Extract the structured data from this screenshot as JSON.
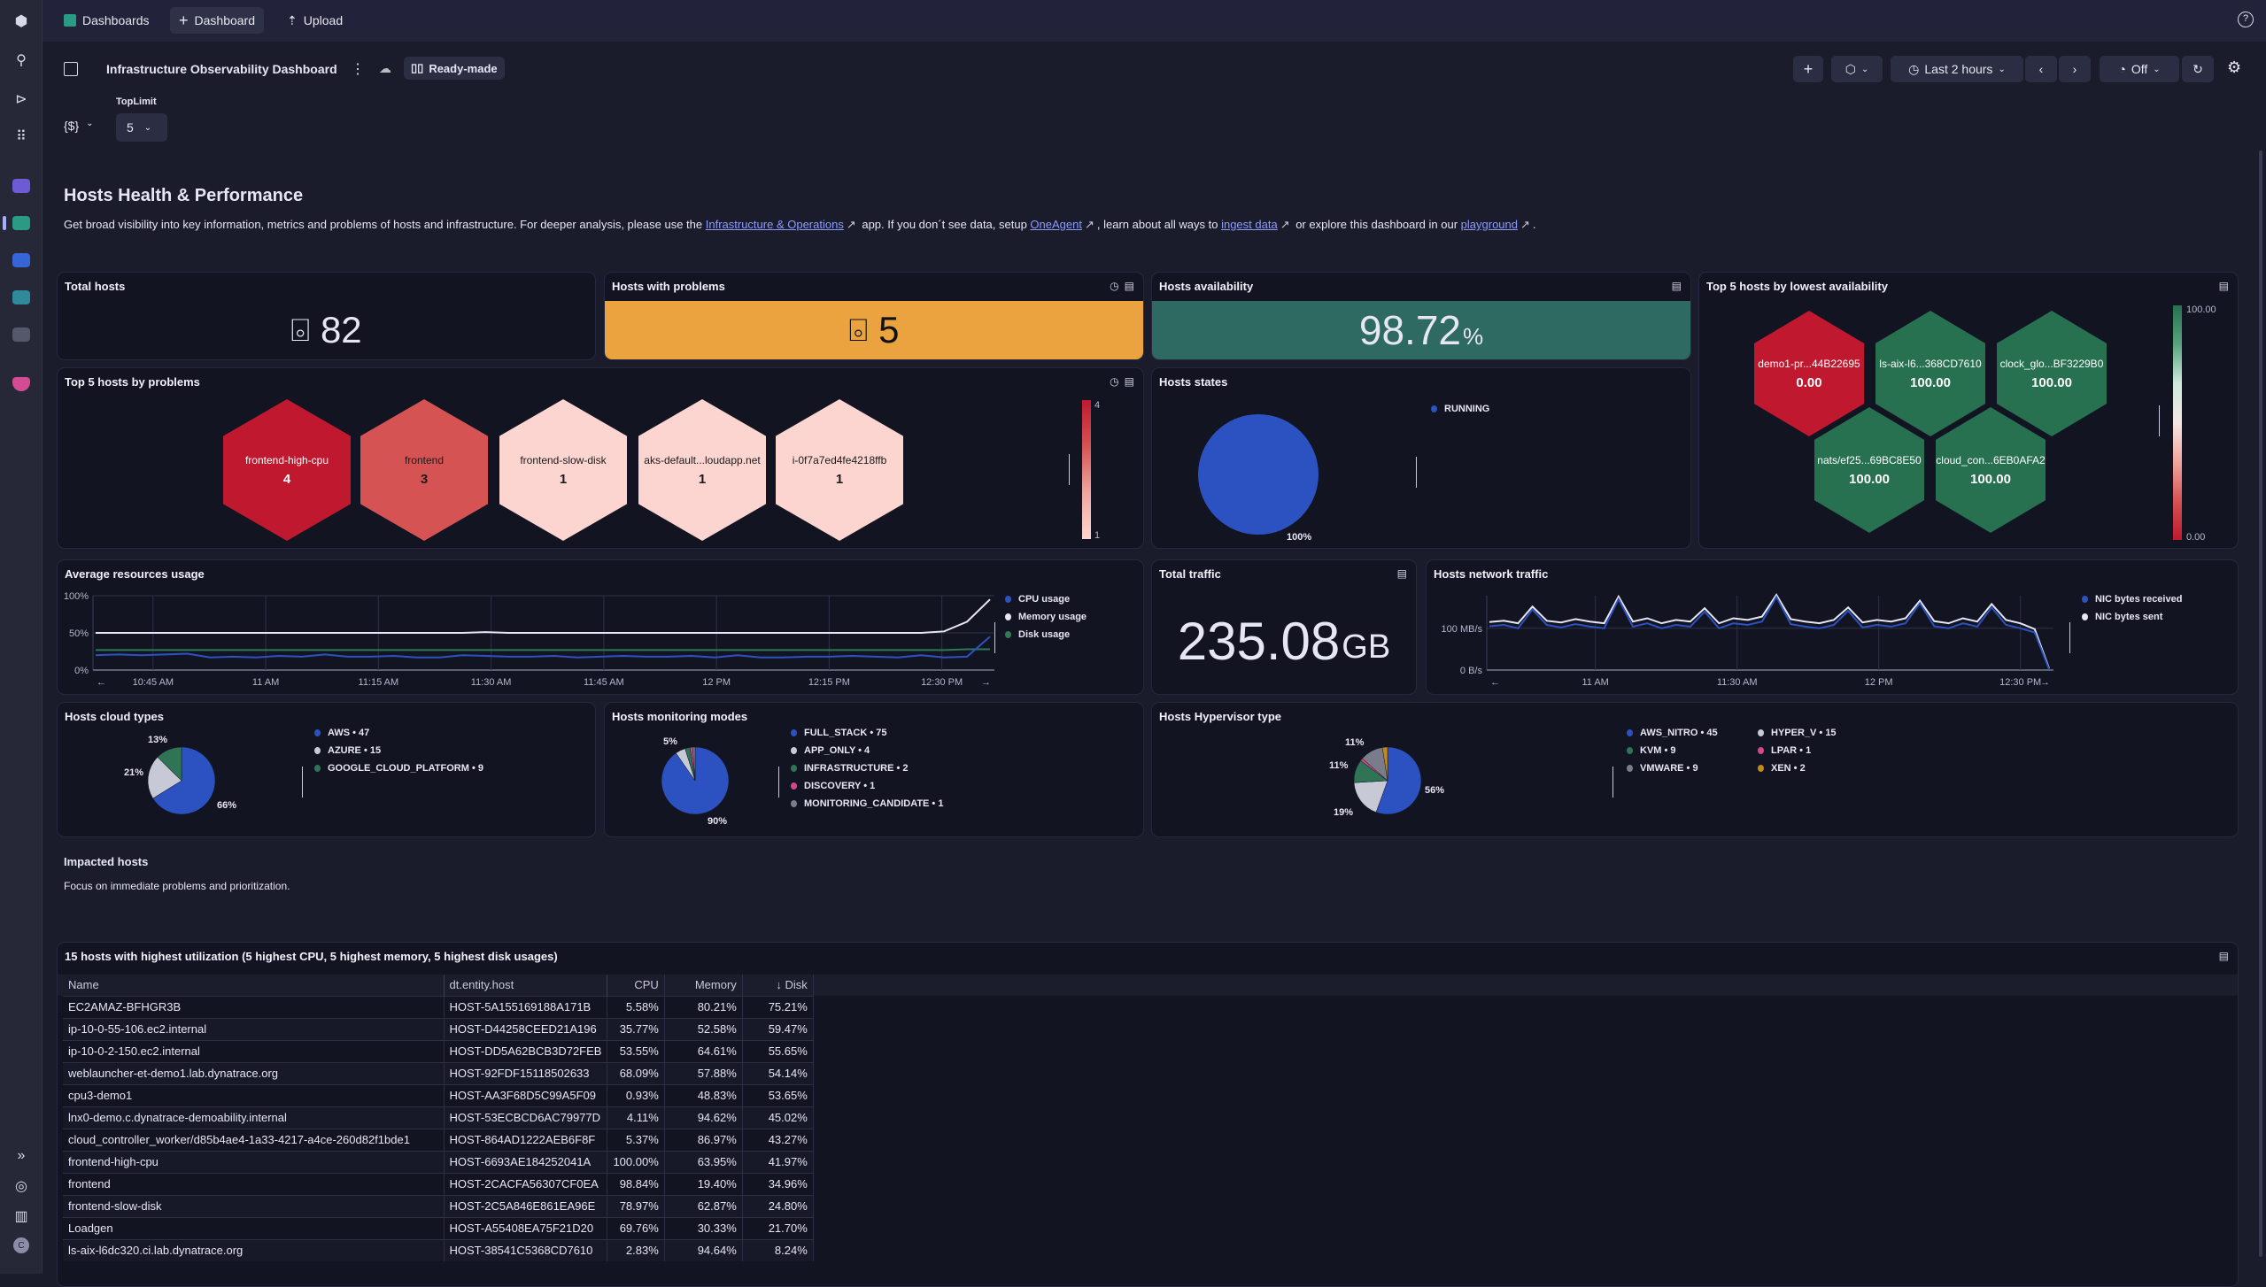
{
  "topbar": {
    "tabs": [
      {
        "label": "Dashboards",
        "icon": "dashboards-app-icon"
      },
      {
        "label": "Dashboard",
        "icon": "plus-icon"
      },
      {
        "label": "Upload",
        "icon": "upload-icon"
      }
    ],
    "help_icon": "help-icon"
  },
  "header": {
    "title": "Infrastructure Observability Dashboard",
    "badge": "Ready-made",
    "timeframe": "Last 2 hours",
    "refresh": "Off"
  },
  "variables": {
    "code_label": "{$}",
    "toplimit_label": "TopLimit",
    "toplimit_value": "5"
  },
  "section": {
    "title": "Hosts Health & Performance",
    "desc": [
      {
        "text": "Get broad visibility into key information, metrics and problems of hosts and infrastructure. For deeper analysis, please use the "
      },
      {
        "link": "Infrastructure & Operations"
      },
      {
        "text": " app. If you don´t see data, setup "
      },
      {
        "link": "OneAgent"
      },
      {
        "text": ", learn about all ways to "
      },
      {
        "link": "ingest data"
      },
      {
        "text": " or explore this dashboard in our "
      },
      {
        "link": "playground"
      },
      {
        "text": "."
      }
    ]
  },
  "tiles": {
    "total_hosts": {
      "title": "Total hosts",
      "value": "82"
    },
    "hosts_problems": {
      "title": "Hosts with problems",
      "value": "5",
      "color": "#eaa33f"
    },
    "availability": {
      "title": "Hosts availability",
      "value": "98.72",
      "unit": "%",
      "color": "#2e6962"
    },
    "lowest_availability": {
      "title": "Top 5 hosts by lowest availability",
      "hosts": [
        {
          "name": "demo1-pr...44B22695",
          "value": "0.00",
          "color": "#c0192f"
        },
        {
          "name": "ls-aix-l6...368CD7610",
          "value": "100.00",
          "color": "#277050"
        },
        {
          "name": "clock_glo...BF3229B0",
          "value": "100.00",
          "color": "#277050"
        },
        {
          "name": "nats/ef25...69BC8E50",
          "value": "100.00",
          "color": "#277050"
        },
        {
          "name": "cloud_con...6EB0AFA2",
          "value": "100.00",
          "color": "#277050"
        }
      ],
      "legend_max": "100.00",
      "legend_min": "0.00"
    },
    "top_problems": {
      "title": "Top 5 hosts by problems",
      "hosts": [
        {
          "name": "frontend-high-cpu",
          "value": "4",
          "color": "#c0192f",
          "text": "#ffffff"
        },
        {
          "name": "frontend",
          "value": "3",
          "color": "#d55353",
          "text": "#1a1a1a"
        },
        {
          "name": "frontend-slow-disk",
          "value": "1",
          "color": "#fcd5d0",
          "text": "#1a1a1a"
        },
        {
          "name": "aks-default...loudapp.net",
          "value": "1",
          "color": "#fcd5d0",
          "text": "#1a1a1a"
        },
        {
          "name": "i-0f7a7ed4fe4218ffb",
          "value": "1",
          "color": "#fcd5d0",
          "text": "#1a1a1a"
        }
      ],
      "legend_max": "4",
      "legend_min": "1"
    },
    "hosts_states": {
      "title": "Hosts states"
    },
    "avg_resources": {
      "title": "Average resources usage"
    },
    "total_traffic": {
      "title": "Total traffic",
      "value": "235.08",
      "unit": "GB"
    },
    "network_traffic": {
      "title": "Hosts network traffic"
    },
    "cloud_types": {
      "title": "Hosts cloud types"
    },
    "monitoring_modes": {
      "title": "Hosts monitoring modes"
    },
    "hypervisor": {
      "title": "Hosts Hypervisor type"
    }
  },
  "impacted": {
    "title": "Impacted hosts",
    "subtitle": "Focus on immediate problems and prioritization."
  },
  "table": {
    "title": "15 hosts with highest utilization (5 highest CPU, 5 highest memory, 5 highest disk usages)",
    "columns": [
      "Name",
      "dt.entity.host",
      "CPU",
      "Memory",
      "↓ Disk"
    ],
    "rows": [
      [
        "EC2AMAZ-BFHGR3B",
        "HOST-5A155169188A171B",
        "5.58%",
        "80.21%",
        "75.21%"
      ],
      [
        "ip-10-0-55-106.ec2.internal",
        "HOST-D44258CEED21A196",
        "35.77%",
        "52.58%",
        "59.47%"
      ],
      [
        "ip-10-0-2-150.ec2.internal",
        "HOST-DD5A62BCB3D72FEB",
        "53.55%",
        "64.61%",
        "55.65%"
      ],
      [
        "weblauncher-et-demo1.lab.dynatrace.org",
        "HOST-92FDF15118502633",
        "68.09%",
        "57.88%",
        "54.14%"
      ],
      [
        "cpu3-demo1",
        "HOST-AA3F68D5C99A5F09",
        "0.93%",
        "48.83%",
        "53.65%"
      ],
      [
        "lnx0-demo.c.dynatrace-demoability.internal",
        "HOST-53ECBCD6AC79977D",
        "4.11%",
        "94.62%",
        "45.02%"
      ],
      [
        "cloud_controller_worker/d85b4ae4-1a33-4217-a4ce-260d82f1bde1",
        "HOST-864AD1222AEB6F8F",
        "5.37%",
        "86.97%",
        "43.27%"
      ],
      [
        "frontend-high-cpu",
        "HOST-6693AE184252041A",
        "100.00%",
        "63.95%",
        "41.97%"
      ],
      [
        "frontend",
        "HOST-2CACFA56307CF0EA",
        "98.84%",
        "19.40%",
        "34.96%"
      ],
      [
        "frontend-slow-disk",
        "HOST-2C5A846E861EA96E",
        "78.97%",
        "62.87%",
        "24.80%"
      ],
      [
        "Loadgen",
        "HOST-A55408EA75F21D20",
        "69.76%",
        "30.33%",
        "21.70%"
      ],
      [
        "ls-aix-l6dc320.ci.lab.dynatrace.org",
        "HOST-38541C5368CD7610",
        "2.83%",
        "94.64%",
        "8.24%"
      ]
    ]
  },
  "chart_data": [
    {
      "id": "hosts_states",
      "type": "pie",
      "series": [
        {
          "name": "RUNNING",
          "value": 82,
          "color": "#2b52c0"
        }
      ],
      "slice_labels": [
        "100%"
      ]
    },
    {
      "id": "avg_resources",
      "type": "line",
      "x_range": [
        "10:37",
        "12:37"
      ],
      "x_ticks": [
        [
          "10:45",
          "10:45 AM"
        ],
        [
          "11:00",
          "11 AM"
        ],
        [
          "11:15",
          "11:15 AM"
        ],
        [
          "11:30",
          "11:30 AM"
        ],
        [
          "11:45",
          "11:45 AM"
        ],
        [
          "12:00",
          "12 PM"
        ],
        [
          "12:15",
          "12:15 PM"
        ],
        [
          "12:30",
          "12:30 PM"
        ]
      ],
      "y_ticks": [
        "0%",
        "50%",
        "100%"
      ],
      "ylim": [
        0,
        100
      ],
      "series": [
        {
          "name": "CPU usage",
          "color": "#2b52c0",
          "values": [
            20,
            21,
            20,
            21,
            22,
            17,
            18,
            17,
            19,
            18,
            21,
            18,
            18,
            19,
            17,
            17,
            20,
            19,
            18,
            18,
            19,
            17,
            18,
            19,
            18,
            18,
            19,
            17,
            20,
            17,
            17,
            18,
            18,
            19,
            18,
            17,
            20,
            17,
            18,
            45
          ]
        },
        {
          "name": "Memory usage",
          "color": "#e6e7f2",
          "values": [
            50,
            50,
            50,
            50,
            50,
            50,
            50,
            50,
            50,
            50,
            50,
            50,
            50,
            50,
            50,
            50,
            50,
            51,
            50,
            50,
            50,
            50,
            50,
            50,
            50,
            50,
            50,
            50,
            50,
            50,
            50,
            50,
            50,
            50,
            50,
            50,
            50,
            52,
            65,
            95
          ]
        },
        {
          "name": "Disk usage",
          "color": "#2d7a55",
          "values": [
            27,
            27,
            27,
            27,
            27,
            27,
            27,
            27,
            27,
            27,
            27,
            27,
            27,
            27,
            27,
            27,
            27,
            27,
            27,
            27,
            27,
            27,
            27,
            27,
            27,
            27,
            27,
            27,
            27,
            27,
            27,
            27,
            27,
            27,
            27,
            27,
            27,
            27,
            28,
            28
          ]
        }
      ]
    },
    {
      "id": "network_traffic",
      "type": "line",
      "x_range": [
        "10:37",
        "12:37"
      ],
      "x_ticks": [
        [
          "11:00",
          "11 AM"
        ],
        [
          "11:30",
          "11:30 AM"
        ],
        [
          "12:00",
          "12 PM"
        ],
        [
          "12:30",
          "12:30 PM"
        ]
      ],
      "y_ticks": [
        "0 B/s",
        "100 MB/s"
      ],
      "ylim": [
        0,
        178
      ],
      "y_unit": "MB/s",
      "series": [
        {
          "name": "NIC bytes received",
          "color": "#2b52c0",
          "values": [
            105,
            108,
            100,
            145,
            108,
            102,
            110,
            104,
            100,
            170,
            104,
            112,
            100,
            108,
            104,
            140,
            100,
            112,
            108,
            116,
            175,
            110,
            104,
            100,
            108,
            142,
            102,
            108,
            104,
            112,
            160,
            105,
            100,
            112,
            104,
            150,
            108,
            100,
            90,
            2
          ]
        },
        {
          "name": "NIC bytes sent",
          "color": "#e6e7f2",
          "values": [
            115,
            118,
            112,
            152,
            118,
            114,
            122,
            116,
            112,
            176,
            116,
            124,
            112,
            120,
            116,
            148,
            112,
            124,
            120,
            128,
            180,
            122,
            116,
            112,
            120,
            150,
            114,
            120,
            116,
            124,
            166,
            117,
            112,
            124,
            116,
            158,
            120,
            112,
            98,
            4
          ]
        }
      ]
    },
    {
      "id": "cloud_types",
      "type": "pie",
      "series": [
        {
          "name": "AWS",
          "value": 47,
          "color": "#2b52c0"
        },
        {
          "name": "AZURE",
          "value": 15,
          "color": "#c8c9d6"
        },
        {
          "name": "GOOGLE_CLOUD_PLATFORM",
          "value": 9,
          "color": "#2f7454"
        }
      ],
      "slice_labels": [
        "66%",
        "21%",
        "13%"
      ]
    },
    {
      "id": "monitoring_modes",
      "type": "pie",
      "series": [
        {
          "name": "FULL_STACK",
          "value": 75,
          "color": "#2b52c0"
        },
        {
          "name": "APP_ONLY",
          "value": 4,
          "color": "#c8c9d6"
        },
        {
          "name": "INFRASTRUCTURE",
          "value": 2,
          "color": "#2f7454"
        },
        {
          "name": "DISCOVERY",
          "value": 1,
          "color": "#d6478a"
        },
        {
          "name": "MONITORING_CANDIDATE",
          "value": 1,
          "color": "#7a7c8c"
        }
      ],
      "slice_labels": [
        "90%",
        "5%"
      ]
    },
    {
      "id": "hypervisor",
      "type": "pie",
      "series": [
        {
          "name": "AWS_NITRO",
          "value": 45,
          "color": "#2b52c0"
        },
        {
          "name": "HYPER_V",
          "value": 15,
          "color": "#c8c9d6"
        },
        {
          "name": "KVM",
          "value": 9,
          "color": "#2f7454"
        },
        {
          "name": "LPAR",
          "value": 1,
          "color": "#d6478a"
        },
        {
          "name": "VMWARE",
          "value": 9,
          "color": "#7a7c8c"
        },
        {
          "name": "XEN",
          "value": 2,
          "color": "#c08a1e"
        }
      ],
      "slice_labels": [
        "56%",
        "19%",
        "11%",
        "11%"
      ]
    }
  ]
}
